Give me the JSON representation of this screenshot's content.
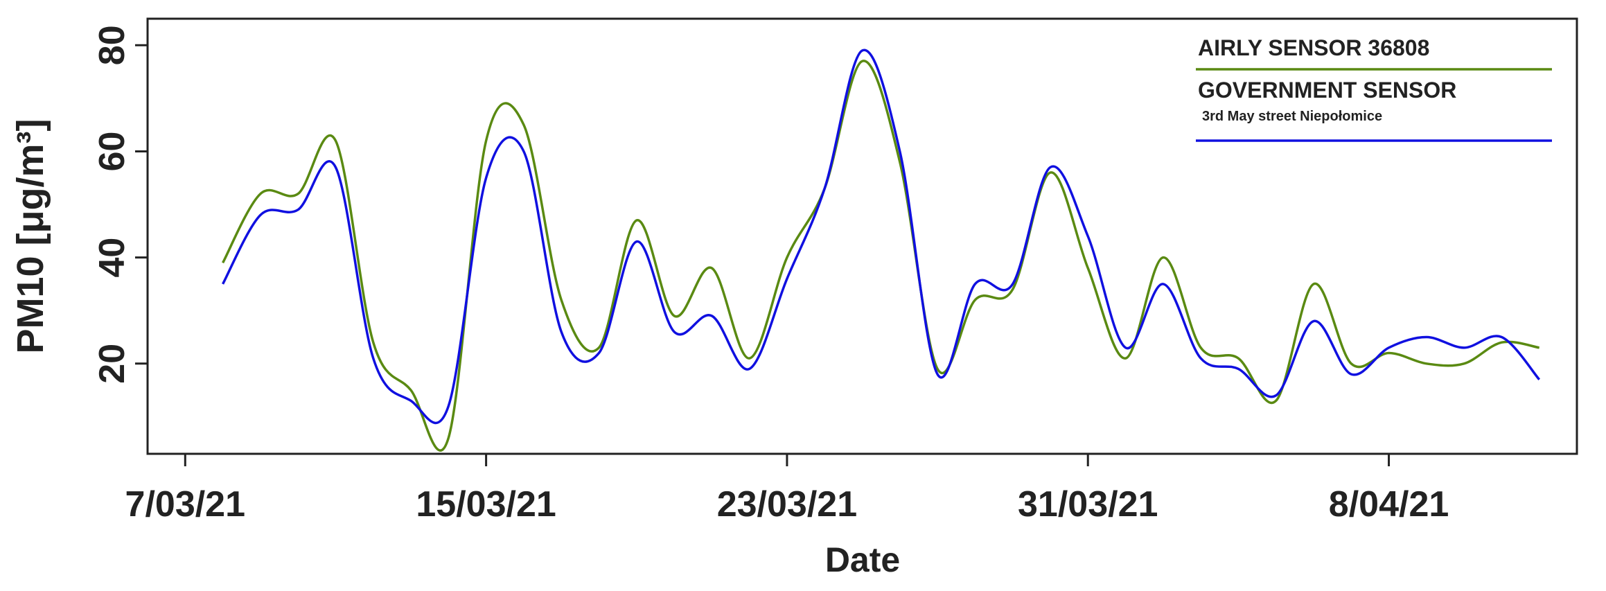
{
  "chart_data": {
    "type": "line",
    "xlabel": "Date",
    "ylabel": "PM10 [μg/m³]",
    "x": [
      "2021-03-08",
      "2021-03-09",
      "2021-03-10",
      "2021-03-11",
      "2021-03-12",
      "2021-03-13",
      "2021-03-14",
      "2021-03-15",
      "2021-03-16",
      "2021-03-17",
      "2021-03-18",
      "2021-03-19",
      "2021-03-20",
      "2021-03-21",
      "2021-03-22",
      "2021-03-23",
      "2021-03-24",
      "2021-03-25",
      "2021-03-26",
      "2021-03-27",
      "2021-03-28",
      "2021-03-29",
      "2021-03-30",
      "2021-03-31",
      "2021-04-01",
      "2021-04-02",
      "2021-04-03",
      "2021-04-04",
      "2021-04-05",
      "2021-04-06",
      "2021-04-07",
      "2021-04-08",
      "2021-04-09",
      "2021-04-10",
      "2021-04-11",
      "2021-04-12"
    ],
    "series": [
      {
        "name": "AIRLY SENSOR 36808",
        "color": "#5a8a12",
        "values": [
          39,
          52,
          52,
          62,
          24,
          15,
          6,
          62,
          65,
          32,
          23,
          47,
          29,
          38,
          21,
          40,
          53,
          77,
          58,
          19,
          32,
          34,
          56,
          38,
          21,
          40,
          23,
          21,
          13,
          35,
          20,
          22,
          20,
          20,
          24,
          23
        ]
      },
      {
        "name": "GOVERNMENT SENSOR",
        "legend_note": "3rd May street Niepołomice",
        "color": "#1010e0",
        "values": [
          35,
          48,
          49,
          57,
          21,
          13,
          12,
          55,
          60,
          26,
          22,
          43,
          26,
          29,
          19,
          36,
          53,
          79,
          60,
          18,
          35,
          35,
          57,
          44,
          23,
          35,
          21,
          19,
          14,
          28,
          18,
          23,
          25,
          23,
          25,
          17
        ]
      }
    ],
    "xlim": [
      "2021-03-06",
      "2021-04-13"
    ],
    "xticks": [
      {
        "value": "2021-03-07",
        "label": "7/03/21"
      },
      {
        "value": "2021-03-15",
        "label": "15/03/21"
      },
      {
        "value": "2021-03-23",
        "label": "23/03/21"
      },
      {
        "value": "2021-03-31",
        "label": "31/03/21"
      },
      {
        "value": "2021-04-08",
        "label": "8/04/21"
      }
    ],
    "ylim": [
      3,
      85
    ],
    "yticks": [
      20,
      40,
      60,
      80
    ],
    "legend": "top-right",
    "grid": false
  }
}
